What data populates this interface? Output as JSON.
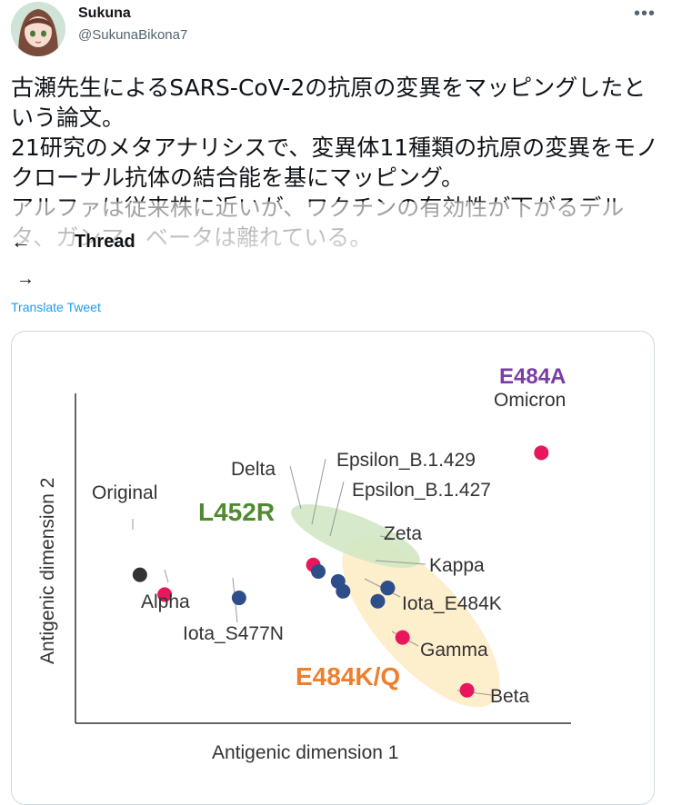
{
  "user": {
    "display_name": "Sukuna",
    "handle": "@SukunaBikona7"
  },
  "menu_glyph": "•••",
  "tweet": {
    "text": "古瀬先生によるSARS-CoV-2の抗原の変異をマッピングしたという論文。\n21研究のメタアナリシスで、変異体11種類の抗原の変異をモノクローナル抗体の結合能を基にマッピング。\nアルファは従来株に近いが、ワクチンの有効性が下がるデルタ、ガンマ、ベータは離れている。"
  },
  "thread": {
    "back_glyph": "←",
    "title": "Thread",
    "forward_glyph": "→"
  },
  "translate_label": "Translate Tweet",
  "chart_data": {
    "type": "scatter",
    "title": "",
    "xlabel": "Antigenic dimension 1",
    "ylabel": "Antigenic dimension 2",
    "colors": {
      "red": "#e8175d",
      "blue": "#2e4e8a",
      "dark": "#333333"
    },
    "points": [
      {
        "name": "Original",
        "x": 13,
        "y": 45,
        "color": "dark"
      },
      {
        "name": "Alpha",
        "x": 18,
        "y": 39,
        "color": "red"
      },
      {
        "name": "Iota_S477N",
        "x": 33,
        "y": 38,
        "color": "blue"
      },
      {
        "name": "Delta",
        "x": 48,
        "y": 48,
        "color": "red"
      },
      {
        "name": "Epsilon_B.1.429",
        "x": 49,
        "y": 46,
        "color": "blue"
      },
      {
        "name": "Epsilon_B.1.427",
        "x": 53,
        "y": 43,
        "color": "blue"
      },
      {
        "name": "E484K_cluster_point",
        "x": 54,
        "y": 40,
        "color": "blue"
      },
      {
        "name": "Zeta",
        "x": 63,
        "y": 41,
        "color": "blue"
      },
      {
        "name": "Iota_E484K",
        "x": 61,
        "y": 37,
        "color": "blue"
      },
      {
        "name": "Gamma",
        "x": 66,
        "y": 26,
        "color": "red"
      },
      {
        "name": "Kappa",
        "x": 63,
        "y": 41,
        "color": "blue"
      },
      {
        "name": "Beta",
        "x": 79,
        "y": 10,
        "color": "red"
      },
      {
        "name": "Omicron",
        "x": 94,
        "y": 82,
        "color": "red"
      }
    ],
    "labels": {
      "original": "Original",
      "alpha": "Alpha",
      "iota_s477n": "Iota_S477N",
      "delta": "Delta",
      "epsilon_429": "Epsilon_B.1.429",
      "epsilon_427": "Epsilon_B.1.427",
      "zeta": "Zeta",
      "kappa": "Kappa",
      "iota_e484k": "Iota_E484K",
      "gamma": "Gamma",
      "beta": "Beta",
      "omicron": "Omicron"
    },
    "groups": {
      "l452r": "L452R",
      "e484kq": "E484K/Q",
      "e484a": "E484A"
    },
    "group_colors": {
      "l452r_text": "#4f8a2f",
      "e484kq_text": "#ee7f2d",
      "e484a_text": "#7a3ea3",
      "l452r_fill": "#cfe6c2",
      "e484kq_fill": "#fdebc3"
    }
  }
}
